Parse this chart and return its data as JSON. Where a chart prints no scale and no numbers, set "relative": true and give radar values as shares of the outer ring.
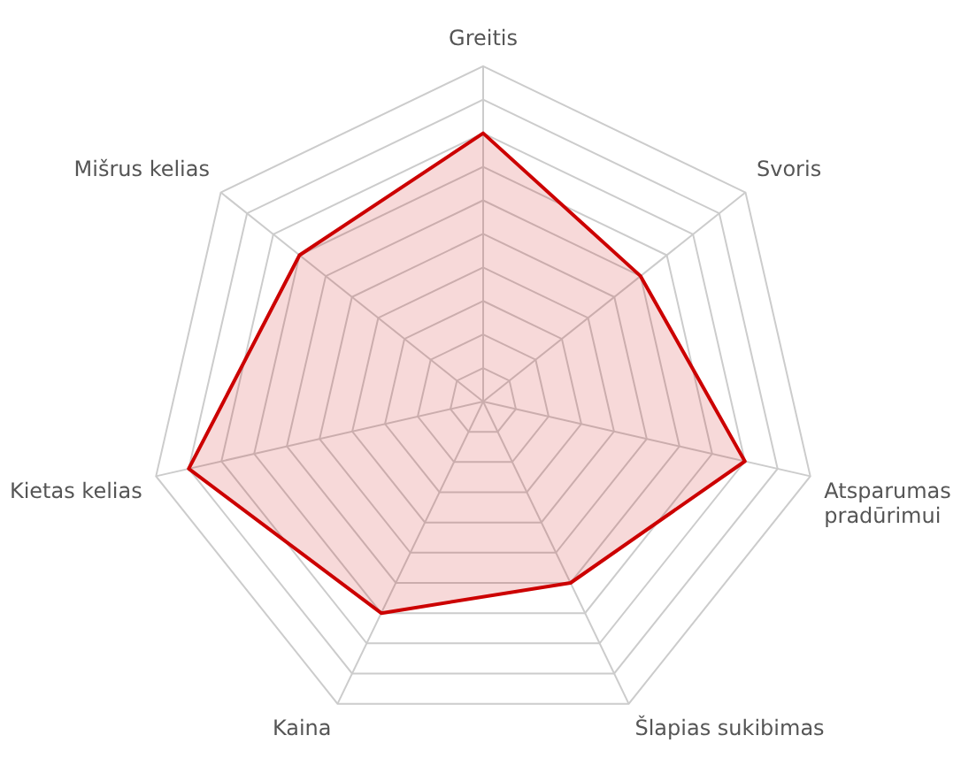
{
  "chart_data": {
    "type": "radar",
    "relative": true,
    "categories": [
      "Greitis",
      "Svoris",
      "Atsparumas pradūrimui",
      "Šlapias sukibimas",
      "Kaina",
      "Kietas kelias",
      "Mišrus kelias"
    ],
    "series": [
      {
        "color": "#cc0000",
        "values": [
          0.8,
          0.6,
          0.8,
          0.6,
          0.7,
          0.9,
          0.7
        ]
      }
    ],
    "grid": true,
    "legend": false,
    "marker": "none"
  }
}
